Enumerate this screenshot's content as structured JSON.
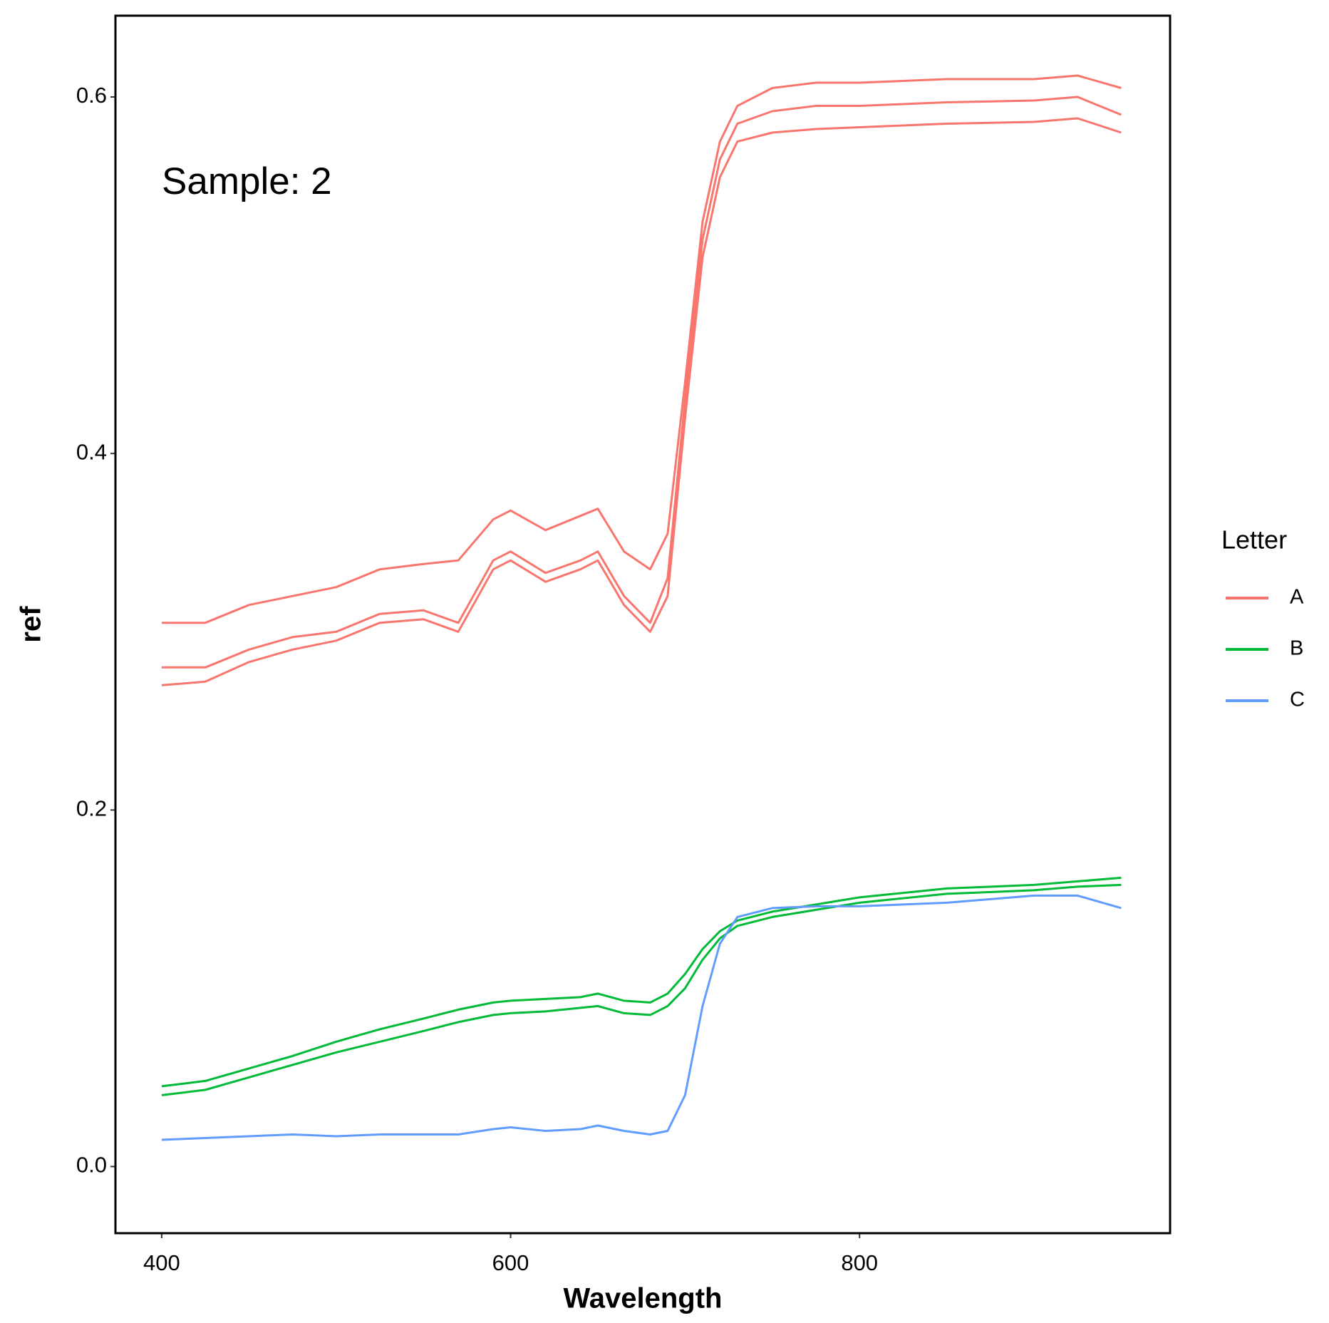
{
  "chart_data": {
    "type": "line",
    "xlabel": "Wavelength",
    "ylabel": "ref",
    "annotation": "Sample: 2",
    "legend_title": "Letter",
    "legend": "right",
    "grid": false,
    "x": [
      400,
      425,
      450,
      475,
      500,
      525,
      550,
      570,
      590,
      600,
      620,
      640,
      650,
      665,
      680,
      690,
      700,
      710,
      720,
      730,
      750,
      775,
      800,
      850,
      900,
      925,
      950
    ],
    "xlim": [
      373.5,
      978
    ],
    "xticks": [
      400,
      600,
      800
    ],
    "ylim": [
      -0.0374,
      0.6456
    ],
    "yticks": [
      {
        "value": 0,
        "label": "0.0"
      },
      0.2,
      0.4,
      0.6
    ],
    "series": [
      {
        "name": "A",
        "color": "#F8766D",
        "lines": [
          [
            0.305,
            0.305,
            0.315,
            0.32,
            0.325,
            0.335,
            0.338,
            0.34,
            0.363,
            0.368,
            0.357,
            0.365,
            0.369,
            0.345,
            0.335,
            0.355,
            0.44,
            0.53,
            0.575,
            0.595,
            0.605,
            0.608,
            0.608,
            0.61,
            0.61,
            0.612,
            0.605
          ],
          [
            0.28,
            0.28,
            0.29,
            0.297,
            0.3,
            0.31,
            0.312,
            0.305,
            0.34,
            0.345,
            0.333,
            0.34,
            0.345,
            0.32,
            0.305,
            0.33,
            0.43,
            0.52,
            0.565,
            0.585,
            0.592,
            0.595,
            0.595,
            0.597,
            0.598,
            0.6,
            0.59
          ],
          [
            0.27,
            0.272,
            0.283,
            0.29,
            0.295,
            0.305,
            0.307,
            0.3,
            0.335,
            0.34,
            0.328,
            0.335,
            0.34,
            0.315,
            0.3,
            0.32,
            0.42,
            0.51,
            0.555,
            0.575,
            0.58,
            0.582,
            0.583,
            0.585,
            0.586,
            0.588,
            0.58
          ]
        ]
      },
      {
        "name": "B",
        "color": "#00BA38",
        "lines": [
          [
            0.045,
            0.048,
            0.055,
            0.062,
            0.07,
            0.077,
            0.083,
            0.088,
            0.092,
            0.093,
            0.094,
            0.095,
            0.097,
            0.093,
            0.092,
            0.097,
            0.108,
            0.122,
            0.132,
            0.138,
            0.143,
            0.147,
            0.151,
            0.156,
            0.158,
            0.16,
            0.162
          ],
          [
            0.04,
            0.043,
            0.05,
            0.057,
            0.064,
            0.07,
            0.076,
            0.081,
            0.085,
            0.086,
            0.087,
            0.089,
            0.09,
            0.086,
            0.085,
            0.09,
            0.1,
            0.116,
            0.128,
            0.135,
            0.14,
            0.144,
            0.148,
            0.153,
            0.155,
            0.157,
            0.158
          ]
        ]
      },
      {
        "name": "C",
        "color": "#619CFF",
        "lines": [
          [
            0.015,
            0.016,
            0.017,
            0.018,
            0.017,
            0.018,
            0.018,
            0.018,
            0.021,
            0.022,
            0.02,
            0.021,
            0.023,
            0.02,
            0.018,
            0.02,
            0.04,
            0.09,
            0.125,
            0.14,
            0.145,
            0.146,
            0.146,
            0.148,
            0.152,
            0.152,
            0.145
          ]
        ]
      }
    ]
  }
}
